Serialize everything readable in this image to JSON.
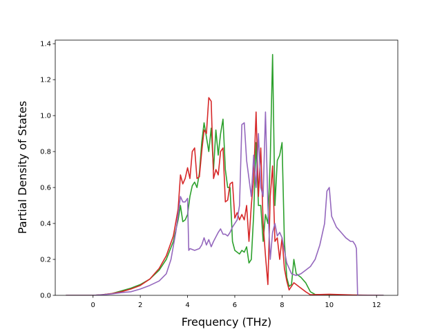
{
  "chart_data": {
    "type": "line",
    "xlabel": "Frequency (THz)",
    "ylabel": "Partial Density of States",
    "xlim": [
      -1.6,
      12.9
    ],
    "ylim": [
      0,
      1.42
    ],
    "xticks": [
      0,
      2,
      4,
      6,
      8,
      10,
      12
    ],
    "yticks": [
      0.0,
      0.2,
      0.4,
      0.6,
      0.8,
      1.0,
      1.2,
      1.4
    ],
    "xtick_labels": [
      "0",
      "2",
      "4",
      "6",
      "8",
      "10",
      "12"
    ],
    "ytick_labels": [
      "0.0",
      "0.2",
      "0.4",
      "0.6",
      "0.8",
      "1.0",
      "1.2",
      "1.4"
    ],
    "grid": false,
    "series": [
      {
        "color": "#2ca02c",
        "points": [
          [
            -1.15,
            0
          ],
          [
            0,
            0
          ],
          [
            0.4,
            0.004
          ],
          [
            0.8,
            0.01
          ],
          [
            1.2,
            0.025
          ],
          [
            1.6,
            0.04
          ],
          [
            2,
            0.06
          ],
          [
            2.4,
            0.09
          ],
          [
            2.8,
            0.14
          ],
          [
            3.1,
            0.2
          ],
          [
            3.4,
            0.3
          ],
          [
            3.6,
            0.42
          ],
          [
            3.7,
            0.5
          ],
          [
            3.8,
            0.41
          ],
          [
            3.9,
            0.42
          ],
          [
            4.0,
            0.45
          ],
          [
            4.1,
            0.55
          ],
          [
            4.2,
            0.61
          ],
          [
            4.3,
            0.63
          ],
          [
            4.4,
            0.6
          ],
          [
            4.5,
            0.68
          ],
          [
            4.6,
            0.85
          ],
          [
            4.7,
            0.96
          ],
          [
            4.8,
            0.88
          ],
          [
            4.9,
            0.8
          ],
          [
            5.0,
            0.93
          ],
          [
            5.1,
            0.7
          ],
          [
            5.2,
            0.92
          ],
          [
            5.3,
            0.78
          ],
          [
            5.4,
            0.9
          ],
          [
            5.5,
            0.98
          ],
          [
            5.6,
            0.7
          ],
          [
            5.7,
            0.6
          ],
          [
            5.8,
            0.6
          ],
          [
            5.9,
            0.3
          ],
          [
            6.0,
            0.25
          ],
          [
            6.1,
            0.24
          ],
          [
            6.2,
            0.23
          ],
          [
            6.3,
            0.25
          ],
          [
            6.4,
            0.24
          ],
          [
            6.5,
            0.27
          ],
          [
            6.6,
            0.18
          ],
          [
            6.7,
            0.2
          ],
          [
            6.8,
            0.45
          ],
          [
            6.9,
            0.85
          ],
          [
            7.0,
            0.5
          ],
          [
            7.1,
            0.5
          ],
          [
            7.2,
            0.3
          ],
          [
            7.3,
            0.45
          ],
          [
            7.4,
            0.4
          ],
          [
            7.5,
            0.75
          ],
          [
            7.6,
            1.34
          ],
          [
            7.7,
            0.5
          ],
          [
            7.8,
            0.75
          ],
          [
            7.9,
            0.78
          ],
          [
            8.0,
            0.85
          ],
          [
            8.1,
            0.3
          ],
          [
            8.2,
            0.1
          ],
          [
            8.3,
            0.05
          ],
          [
            8.4,
            0.06
          ],
          [
            8.5,
            0.2
          ],
          [
            8.6,
            0.12
          ],
          [
            8.8,
            0.1
          ],
          [
            9.0,
            0.07
          ],
          [
            9.2,
            0.02
          ],
          [
            9.4,
            0.005
          ],
          [
            10.0,
            0.003
          ],
          [
            11.0,
            0.001
          ],
          [
            12.3,
            0
          ]
        ]
      },
      {
        "color": "#d62728",
        "points": [
          [
            -1.15,
            0
          ],
          [
            0,
            0
          ],
          [
            0.4,
            0.004
          ],
          [
            0.8,
            0.01
          ],
          [
            1.2,
            0.02
          ],
          [
            1.6,
            0.035
          ],
          [
            2,
            0.055
          ],
          [
            2.4,
            0.09
          ],
          [
            2.8,
            0.15
          ],
          [
            3.1,
            0.22
          ],
          [
            3.4,
            0.33
          ],
          [
            3.6,
            0.48
          ],
          [
            3.7,
            0.67
          ],
          [
            3.8,
            0.62
          ],
          [
            3.9,
            0.65
          ],
          [
            4.0,
            0.71
          ],
          [
            4.1,
            0.65
          ],
          [
            4.2,
            0.8
          ],
          [
            4.3,
            0.82
          ],
          [
            4.4,
            0.65
          ],
          [
            4.5,
            0.66
          ],
          [
            4.6,
            0.8
          ],
          [
            4.7,
            0.92
          ],
          [
            4.8,
            0.9
          ],
          [
            4.9,
            1.1
          ],
          [
            5.0,
            1.08
          ],
          [
            5.1,
            0.65
          ],
          [
            5.2,
            0.7
          ],
          [
            5.3,
            0.67
          ],
          [
            5.4,
            0.8
          ],
          [
            5.5,
            0.82
          ],
          [
            5.6,
            0.52
          ],
          [
            5.7,
            0.53
          ],
          [
            5.8,
            0.62
          ],
          [
            5.9,
            0.63
          ],
          [
            6.0,
            0.43
          ],
          [
            6.1,
            0.46
          ],
          [
            6.2,
            0.42
          ],
          [
            6.3,
            0.45
          ],
          [
            6.4,
            0.42
          ],
          [
            6.5,
            0.5
          ],
          [
            6.6,
            0.3
          ],
          [
            6.7,
            0.5
          ],
          [
            6.8,
            0.65
          ],
          [
            6.9,
            1.02
          ],
          [
            7.0,
            0.55
          ],
          [
            7.1,
            0.82
          ],
          [
            7.2,
            0.4
          ],
          [
            7.3,
            0.22
          ],
          [
            7.4,
            0.06
          ],
          [
            7.5,
            0.55
          ],
          [
            7.6,
            0.72
          ],
          [
            7.7,
            0.3
          ],
          [
            7.8,
            0.32
          ],
          [
            7.9,
            0.2
          ],
          [
            8.0,
            0.32
          ],
          [
            8.1,
            0.15
          ],
          [
            8.2,
            0.08
          ],
          [
            8.3,
            0.03
          ],
          [
            8.5,
            0.07
          ],
          [
            8.7,
            0.05
          ],
          [
            9.0,
            0.02
          ],
          [
            9.2,
            0.003
          ],
          [
            10.0,
            0.006
          ],
          [
            11.0,
            0.002
          ],
          [
            12.3,
            0
          ]
        ]
      },
      {
        "color": "#9467bd",
        "points": [
          [
            -1.15,
            0
          ],
          [
            0,
            0
          ],
          [
            0.4,
            0.003
          ],
          [
            0.8,
            0.008
          ],
          [
            1.2,
            0.015
          ],
          [
            1.6,
            0.02
          ],
          [
            2,
            0.035
          ],
          [
            2.4,
            0.055
          ],
          [
            2.8,
            0.08
          ],
          [
            3.1,
            0.12
          ],
          [
            3.3,
            0.2
          ],
          [
            3.5,
            0.35
          ],
          [
            3.7,
            0.55
          ],
          [
            3.8,
            0.52
          ],
          [
            3.9,
            0.52
          ],
          [
            4.0,
            0.54
          ],
          [
            4.05,
            0.25
          ],
          [
            4.1,
            0.26
          ],
          [
            4.3,
            0.25
          ],
          [
            4.5,
            0.26
          ],
          [
            4.6,
            0.28
          ],
          [
            4.7,
            0.32
          ],
          [
            4.8,
            0.28
          ],
          [
            4.9,
            0.31
          ],
          [
            5.0,
            0.27
          ],
          [
            5.1,
            0.3
          ],
          [
            5.3,
            0.35
          ],
          [
            5.4,
            0.37
          ],
          [
            5.5,
            0.34
          ],
          [
            5.6,
            0.34
          ],
          [
            5.7,
            0.33
          ],
          [
            5.8,
            0.35
          ],
          [
            5.9,
            0.38
          ],
          [
            6.0,
            0.4
          ],
          [
            6.1,
            0.42
          ],
          [
            6.2,
            0.5
          ],
          [
            6.3,
            0.95
          ],
          [
            6.4,
            0.96
          ],
          [
            6.5,
            0.75
          ],
          [
            6.6,
            0.65
          ],
          [
            6.7,
            0.55
          ],
          [
            6.8,
            0.78
          ],
          [
            6.9,
            0.6
          ],
          [
            7.0,
            0.9
          ],
          [
            7.1,
            0.6
          ],
          [
            7.2,
            0.55
          ],
          [
            7.3,
            1.02
          ],
          [
            7.4,
            0.5
          ],
          [
            7.5,
            0.2
          ],
          [
            7.6,
            0.35
          ],
          [
            7.7,
            0.4
          ],
          [
            7.8,
            0.33
          ],
          [
            7.9,
            0.35
          ],
          [
            8.0,
            0.32
          ],
          [
            8.1,
            0.25
          ],
          [
            8.2,
            0.18
          ],
          [
            8.4,
            0.12
          ],
          [
            8.6,
            0.11
          ],
          [
            8.8,
            0.12
          ],
          [
            9.0,
            0.14
          ],
          [
            9.2,
            0.16
          ],
          [
            9.4,
            0.2
          ],
          [
            9.6,
            0.28
          ],
          [
            9.8,
            0.4
          ],
          [
            9.9,
            0.58
          ],
          [
            10.0,
            0.6
          ],
          [
            10.1,
            0.44
          ],
          [
            10.3,
            0.38
          ],
          [
            10.5,
            0.35
          ],
          [
            10.7,
            0.32
          ],
          [
            10.9,
            0.3
          ],
          [
            11.0,
            0.3
          ],
          [
            11.1,
            0.28
          ],
          [
            11.15,
            0.26
          ],
          [
            11.2,
            0.0
          ],
          [
            12.3,
            0
          ]
        ]
      }
    ]
  }
}
